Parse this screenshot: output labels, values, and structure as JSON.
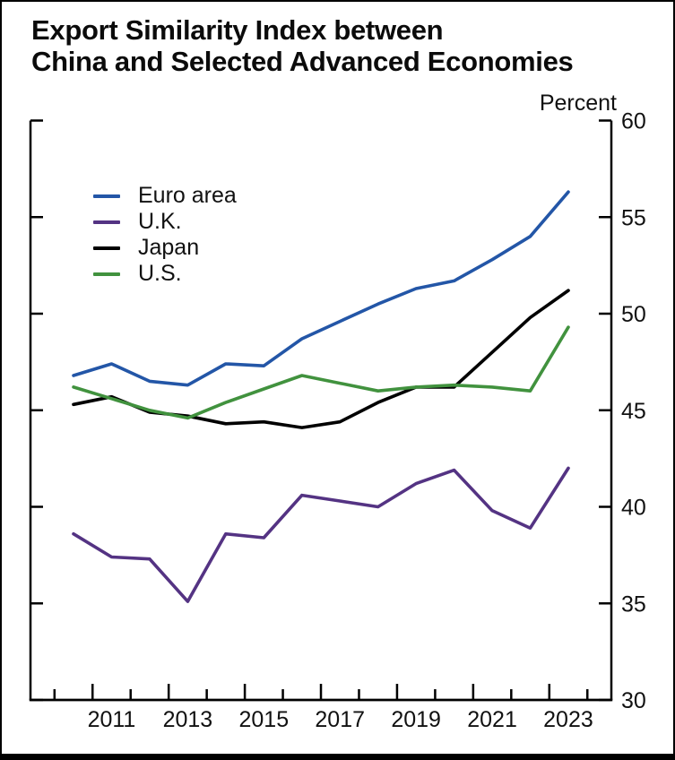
{
  "header": {
    "title_line1": "Export Similarity Index between",
    "title_line2": "China and Selected Advanced Economies"
  },
  "chart_data": {
    "type": "line",
    "title": "Export Similarity Index between China and Selected Advanced Economies",
    "unit_label": "Percent",
    "x": [
      2010,
      2011,
      2012,
      2013,
      2014,
      2015,
      2016,
      2017,
      2018,
      2019,
      2020,
      2021,
      2022,
      2023
    ],
    "x_tick_labels": [
      "2011",
      "2013",
      "2015",
      "2017",
      "2019",
      "2021",
      "2023"
    ],
    "ylim": [
      30,
      60
    ],
    "y_ticks": [
      30,
      35,
      40,
      45,
      50,
      55,
      60
    ],
    "grid": false,
    "legend_position": "upper-left-inside",
    "axis_color": "#000000",
    "series": [
      {
        "name": "Euro area",
        "color": "#2356A7",
        "values": [
          46.8,
          47.4,
          46.5,
          46.3,
          47.4,
          47.3,
          48.7,
          49.6,
          50.5,
          51.3,
          51.7,
          52.8,
          54.0,
          56.3
        ]
      },
      {
        "name": "U.K.",
        "color": "#543383",
        "values": [
          38.6,
          37.4,
          37.3,
          35.1,
          38.6,
          38.4,
          40.6,
          40.3,
          40.0,
          41.2,
          41.9,
          39.8,
          38.9,
          42.0
        ]
      },
      {
        "name": "Japan",
        "color": "#000000",
        "values": [
          45.3,
          45.7,
          44.9,
          44.7,
          44.3,
          44.4,
          44.1,
          44.4,
          45.4,
          46.2,
          46.2,
          48.0,
          49.8,
          51.2
        ]
      },
      {
        "name": "U.S.",
        "color": "#41923E",
        "values": [
          46.2,
          45.6,
          45.0,
          44.6,
          45.4,
          46.1,
          46.8,
          46.4,
          46.0,
          46.2,
          46.3,
          46.2,
          46.0,
          49.3
        ]
      }
    ]
  }
}
